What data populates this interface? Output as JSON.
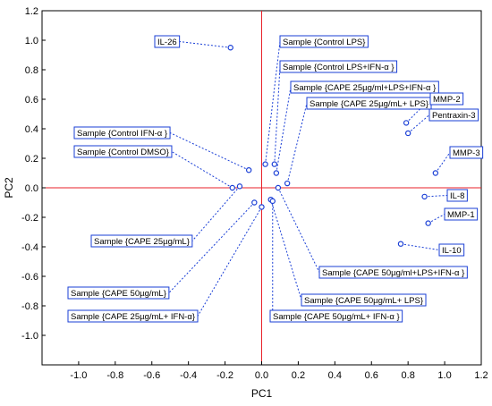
{
  "chart_data": {
    "type": "scatter",
    "xlabel": "PC1",
    "ylabel": "PC2",
    "xlim": [
      -1.2,
      1.2
    ],
    "ylim": [
      -1.2,
      1.2
    ],
    "xticks": [
      "-1.0",
      "-0.8",
      "-0.6",
      "-0.4",
      "-0.2",
      "0.0",
      "0.2",
      "0.4",
      "0.6",
      "0.8",
      "1.0",
      "1.2"
    ],
    "yticks": [
      "1.2",
      "1.0",
      "0.8",
      "0.6",
      "0.4",
      "0.2",
      "0.0",
      "-0.2",
      "-0.4",
      "-0.6",
      "-0.8",
      "-1.0"
    ],
    "zero_lines": true,
    "grid": false,
    "colors": {
      "points": "#1a3fd6",
      "zero_lines": "#e8222a",
      "frame": "#000000"
    },
    "points": [
      {
        "label": "IL-26",
        "x": -0.17,
        "y": 0.95
      },
      {
        "label": "Sample {Control LPS}",
        "x": 0.02,
        "y": 0.16
      },
      {
        "label": "Sample {Control LPS+IFN-α }",
        "x": 0.07,
        "y": 0.16
      },
      {
        "label": "Sample {CAPE 25µg/ml+LPS+IFN-α }",
        "x": 0.08,
        "y": 0.1
      },
      {
        "label": "Sample {CAPE 25µg/mL+ LPS}",
        "x": 0.14,
        "y": 0.03
      },
      {
        "label": "MMP-2",
        "x": 0.79,
        "y": 0.44
      },
      {
        "label": "Pentraxin-3",
        "x": 0.8,
        "y": 0.37
      },
      {
        "label": "MMP-3",
        "x": 0.95,
        "y": 0.1
      },
      {
        "label": "IL-8",
        "x": 0.89,
        "y": -0.06
      },
      {
        "label": "MMP-1",
        "x": 0.91,
        "y": -0.24
      },
      {
        "label": "IL-10",
        "x": 0.76,
        "y": -0.38
      },
      {
        "label": "Sample {Control IFN-α }",
        "x": -0.07,
        "y": 0.12
      },
      {
        "label": "Sample {Control DMSO}",
        "x": -0.16,
        "y": 0.0
      },
      {
        "label": "Sample {CAPE 25µg/mL}",
        "x": -0.12,
        "y": 0.01
      },
      {
        "label": "Sample {CAPE 50µg/mL}",
        "x": -0.04,
        "y": -0.1
      },
      {
        "label": "Sample {CAPE 25µg/mL+ IFN-α}",
        "x": 0.0,
        "y": -0.13
      },
      {
        "label": "Sample {CAPE 50µg/ml+LPS+IFN-α }",
        "x": 0.09,
        "y": 0.0
      },
      {
        "label": "Sample {CAPE 50µg/mL+ LPS}",
        "x": 0.05,
        "y": -0.08
      },
      {
        "label": "Sample {CAPE 50µg/mL+ IFN-α }",
        "x": 0.06,
        "y": -0.09
      }
    ]
  }
}
